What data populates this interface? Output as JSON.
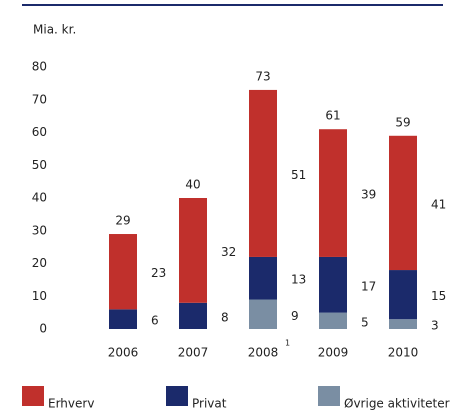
{
  "chart_data": {
    "type": "stacked_bar",
    "y_label": "Mia. kr.",
    "categories": [
      "2006",
      "2007",
      "2008",
      "2009",
      "2010"
    ],
    "category_superscripts": [
      null,
      null,
      "1",
      null,
      null
    ],
    "series": [
      {
        "name": "Øvrige aktiviteter",
        "color": "#7a8ea3",
        "values": [
          null,
          null,
          9,
          5,
          3
        ]
      },
      {
        "name": "Privat",
        "color": "#1b2a6b",
        "values": [
          6,
          8,
          13,
          17,
          15
        ]
      },
      {
        "name": "Erhverv",
        "color": "#c0302c",
        "values": [
          23,
          32,
          51,
          39,
          41
        ]
      }
    ],
    "totals": [
      29,
      40,
      73,
      61,
      59
    ],
    "legend_order": [
      2,
      1,
      0
    ],
    "ylim": [
      0,
      80
    ],
    "yticks": [
      0,
      10,
      20,
      30,
      40,
      50,
      60,
      70,
      80
    ],
    "grid": false
  }
}
